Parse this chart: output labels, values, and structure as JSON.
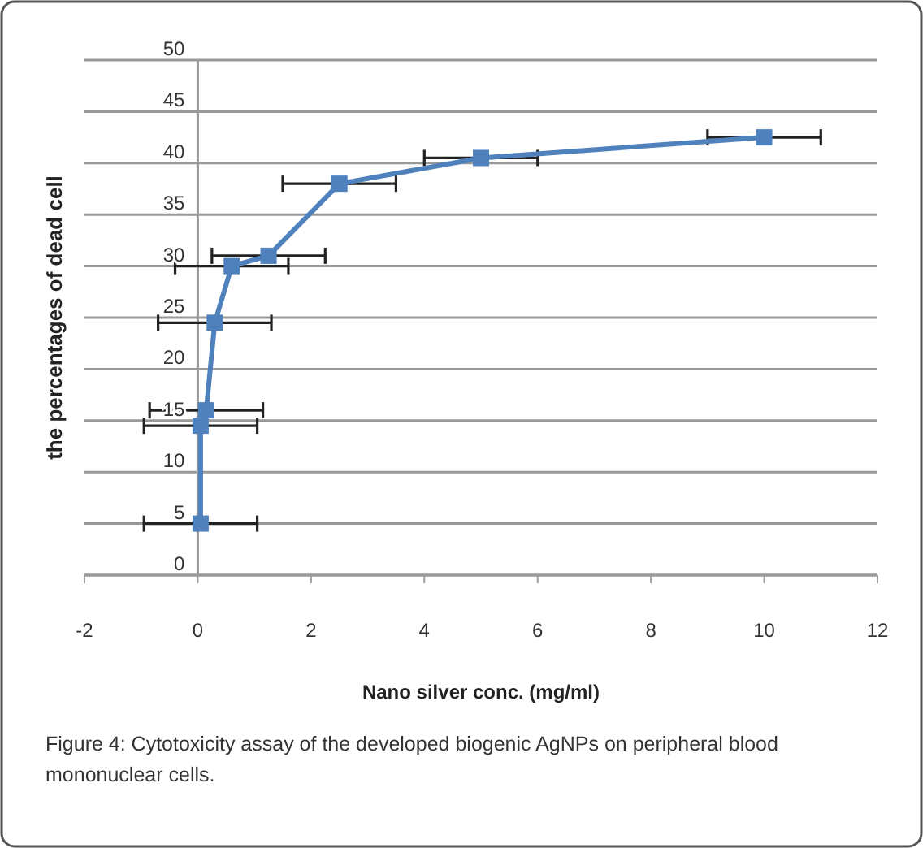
{
  "chart_data": {
    "type": "line",
    "xlabel": "Nano silver conc. (mg/ml)",
    "ylabel": "the percentages of dead cell",
    "annotations": [
      "Figure 4: Cytotoxicity assay of the developed biogenic AgNPs on peripheral blood mononuclear cells."
    ],
    "x": [
      0.05,
      0.05,
      0.15,
      0.3,
      0.6,
      1.25,
      2.5,
      5,
      10
    ],
    "series": [
      {
        "color": "#4f81bd",
        "values": [
          5,
          14.5,
          16,
          24.5,
          30,
          31,
          38,
          40.5,
          42.5
        ],
        "xerrors": [
          1,
          1,
          1,
          1,
          1,
          1,
          1,
          1,
          1
        ]
      }
    ],
    "xlim": [
      -2,
      12
    ],
    "xticks": [
      -2,
      0,
      2,
      4,
      6,
      8,
      10,
      12
    ],
    "ylim": [
      0,
      50
    ],
    "yticks": [
      0,
      5,
      10,
      15,
      20,
      25,
      30,
      35,
      40,
      45,
      50
    ],
    "grid": "y",
    "marker": "square",
    "line_style": "solid"
  }
}
